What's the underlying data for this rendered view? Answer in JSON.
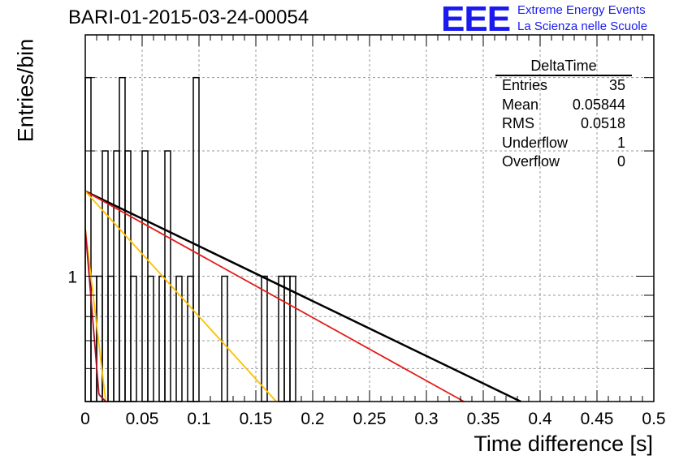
{
  "header": {
    "title": "BARI-01-2015-03-24-00054"
  },
  "logo": {
    "mark": "EEE",
    "line1": "Extreme Energy Events",
    "line2": "La Scienza nelle Scuole",
    "color": "#1a1af0"
  },
  "chart_data": {
    "type": "histogram",
    "xlabel": "Time difference [s]",
    "ylabel": "Entries/bin",
    "xlim": [
      0,
      0.5
    ],
    "ylim": [
      0.5,
      3.8
    ],
    "yscale": "log",
    "grid": true,
    "x_ticks": [
      "0",
      "0.05",
      "0.1",
      "0.15",
      "0.2",
      "0.25",
      "0.3",
      "0.35",
      "0.4",
      "0.45",
      "0.5"
    ],
    "y_ticks": [
      "1"
    ],
    "bin_width": 0.005,
    "bins": [
      {
        "x": 0.0,
        "y": 3
      },
      {
        "x": 0.005,
        "y": 1
      },
      {
        "x": 0.01,
        "y": 1
      },
      {
        "x": 0.015,
        "y": 2
      },
      {
        "x": 0.02,
        "y": 1
      },
      {
        "x": 0.025,
        "y": 2
      },
      {
        "x": 0.03,
        "y": 3
      },
      {
        "x": 0.035,
        "y": 2
      },
      {
        "x": 0.04,
        "y": 1
      },
      {
        "x": 0.045,
        "y": 0
      },
      {
        "x": 0.05,
        "y": 2
      },
      {
        "x": 0.055,
        "y": 1
      },
      {
        "x": 0.06,
        "y": 0
      },
      {
        "x": 0.065,
        "y": 1
      },
      {
        "x": 0.07,
        "y": 2
      },
      {
        "x": 0.075,
        "y": 0
      },
      {
        "x": 0.08,
        "y": 1
      },
      {
        "x": 0.085,
        "y": 0
      },
      {
        "x": 0.09,
        "y": 1
      },
      {
        "x": 0.095,
        "y": 3
      },
      {
        "x": 0.1,
        "y": 0
      },
      {
        "x": 0.105,
        "y": 0
      },
      {
        "x": 0.11,
        "y": 0
      },
      {
        "x": 0.115,
        "y": 0
      },
      {
        "x": 0.12,
        "y": 1
      },
      {
        "x": 0.125,
        "y": 0
      },
      {
        "x": 0.13,
        "y": 0
      },
      {
        "x": 0.135,
        "y": 0
      },
      {
        "x": 0.14,
        "y": 0
      },
      {
        "x": 0.145,
        "y": 0
      },
      {
        "x": 0.15,
        "y": 0
      },
      {
        "x": 0.155,
        "y": 1
      },
      {
        "x": 0.16,
        "y": 0
      },
      {
        "x": 0.165,
        "y": 0
      },
      {
        "x": 0.17,
        "y": 1
      },
      {
        "x": 0.175,
        "y": 1
      },
      {
        "x": 0.18,
        "y": 1
      }
    ],
    "lines": [
      {
        "color": "#000000",
        "x": [
          0.0,
          0.383
        ],
        "y": [
          1.6,
          0.5
        ]
      },
      {
        "color": "#e31a1a",
        "x": [
          0.0,
          0.333
        ],
        "y": [
          1.6,
          0.5
        ]
      },
      {
        "color": "#ffc000",
        "x": [
          0.0,
          0.168
        ],
        "y": [
          1.6,
          0.5
        ]
      },
      {
        "color": "#ffc000",
        "x": [
          0.0,
          0.018
        ],
        "y": [
          1.3,
          0.5
        ]
      },
      {
        "color": "#b0102a",
        "x": [
          0.0,
          0.012
        ],
        "y": [
          1.3,
          0.52
        ]
      },
      {
        "color": "#b0102a",
        "x": [
          0.012,
          0.018
        ],
        "y": [
          0.52,
          0.5
        ]
      }
    ],
    "stats": {
      "title": "DeltaTime",
      "rows": [
        {
          "label": "Entries",
          "value": "35"
        },
        {
          "label": "Mean",
          "value": "0.05844"
        },
        {
          "label": "RMS",
          "value": "0.0518"
        },
        {
          "label": "Underflow",
          "value": "1"
        },
        {
          "label": "Overflow",
          "value": "0"
        }
      ]
    }
  }
}
